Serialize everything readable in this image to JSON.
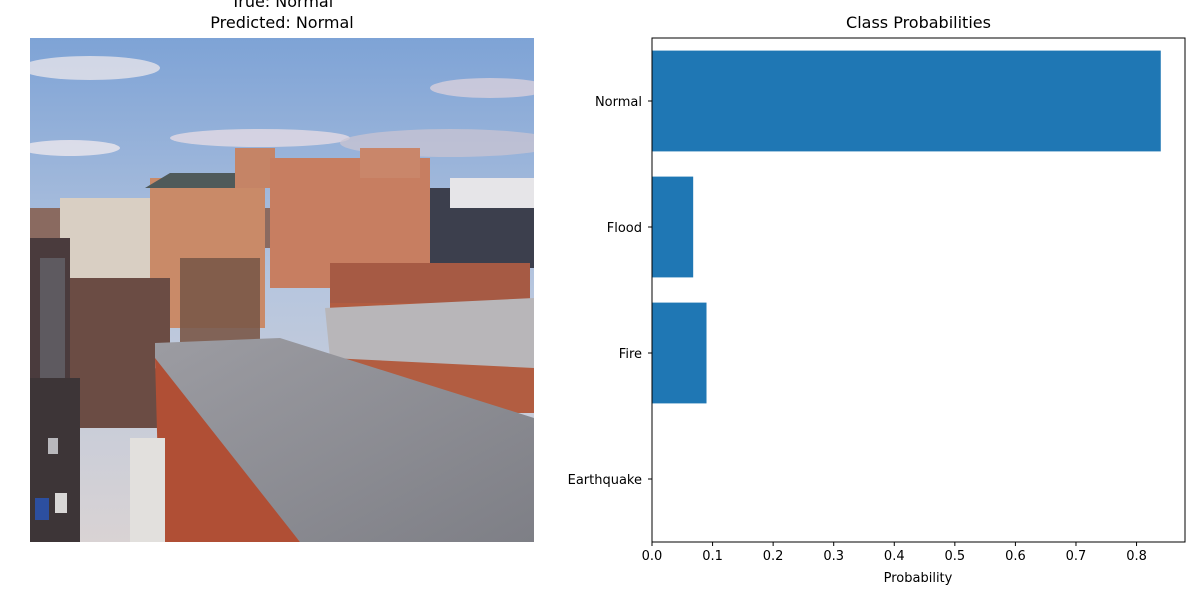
{
  "image_panel": {
    "title_true": "True: Normal",
    "title_predicted": "Predicted: Normal"
  },
  "chart_data": {
    "type": "bar",
    "orientation": "horizontal",
    "title": "Class Probabilities",
    "xlabel": "Probability",
    "ylabel": "",
    "categories": [
      "Earthquake",
      "Fire",
      "Flood",
      "Normal"
    ],
    "values": [
      0.0,
      0.09,
      0.068,
      0.84
    ],
    "xlim": [
      0.0,
      0.88
    ],
    "xticks": [
      "0.0",
      "0.1",
      "0.2",
      "0.3",
      "0.4",
      "0.5",
      "0.6",
      "0.7",
      "0.8"
    ],
    "bar_color": "#1f77b4",
    "grid": false
  }
}
